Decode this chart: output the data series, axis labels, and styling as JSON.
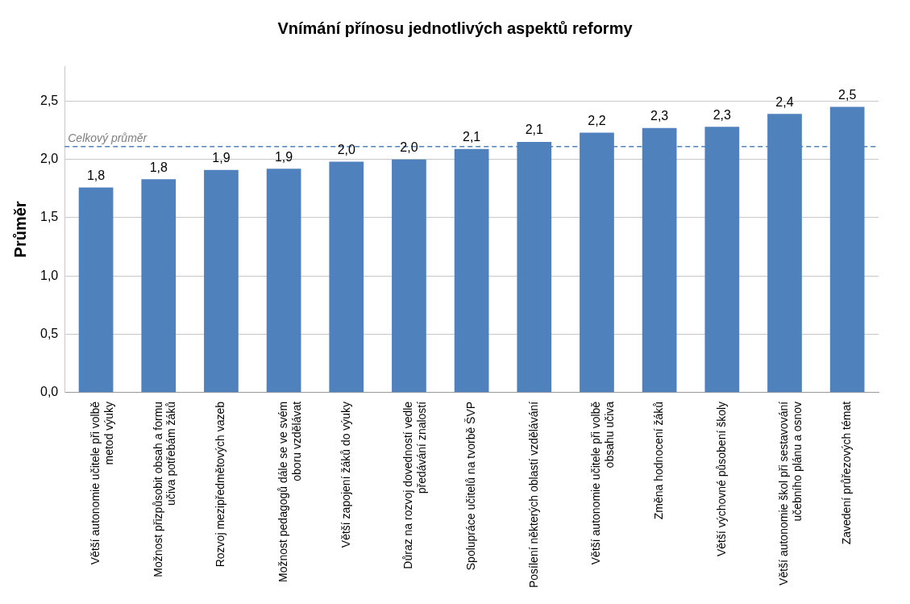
{
  "chart_data": {
    "type": "bar",
    "title": "Vnímání přínosu jednotlivých aspektů reformy",
    "ylabel": "Průměr",
    "categories": [
      "Větší autonomie učitele při volbě metod výuky",
      "Možnost přizpůsobit obsah a formu učiva potřebám žáků",
      "Rozvoj mezipředmětových vazeb",
      "Možnost pedagogů dále se ve svém oboru vzdělávat",
      "Větší zapojení žáků do výuky",
      "Důraz na rozvoj dovedností vedle předávání znalostí",
      "Spolupráce učitelů na tvorbě ŠVP",
      "Posílení některých oblastí vzdělávání",
      "Větší autonomie učitele při volbě obsahu učiva",
      "Změna hodnocení žáků",
      "Větší výchovné působení školy",
      "Větší autonomie škol při sestavování učebního plánu a osnov",
      "Zavedení průřezových témat"
    ],
    "values": [
      1.76,
      1.83,
      1.91,
      1.92,
      1.98,
      2.0,
      2.09,
      2.15,
      2.23,
      2.27,
      2.28,
      2.39,
      2.45
    ],
    "value_labels": [
      "1,8",
      "1,8",
      "1,9",
      "1,9",
      "2,0",
      "2,0",
      "2,1",
      "2,1",
      "2,2",
      "2,3",
      "2,3",
      "2,4",
      "2,5"
    ],
    "color": "#4f81bd",
    "ylim": [
      0,
      2.8
    ],
    "yticks": [
      {
        "value": 0,
        "label": "0,0"
      },
      {
        "value": 0.5,
        "label": "0,5"
      },
      {
        "value": 1,
        "label": "1,0"
      },
      {
        "value": 1.5,
        "label": "1,5"
      },
      {
        "value": 2,
        "label": "2,0"
      },
      {
        "value": 2.5,
        "label": "2,5"
      }
    ],
    "grid": "y",
    "ref_lines": [
      {
        "axis": "y",
        "value": 2.11,
        "label": "Celkový průměr",
        "color": "#4f81bd",
        "line_style": "dashed"
      }
    ]
  }
}
